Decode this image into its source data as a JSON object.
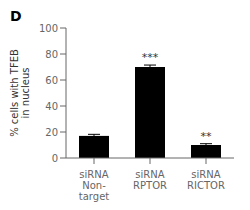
{
  "chart_data": {
    "type": "bar",
    "title": "D",
    "categories": [
      "siRNA\nNon-\ntarget",
      "siRNA\nRPTOR",
      "siRNA\nRICTOR"
    ],
    "values": [
      17.0,
      70.0,
      10.0
    ],
    "errors": [
      1.2,
      1.5,
      1.0
    ],
    "annotations": [
      null,
      "***",
      "**"
    ],
    "color": "#000000",
    "ylabel": "% cells with TFEB\nin nucleus",
    "ylim": [
      0,
      100
    ],
    "yticks": [
      0,
      20,
      40,
      60,
      80,
      100
    ],
    "grid": false
  }
}
